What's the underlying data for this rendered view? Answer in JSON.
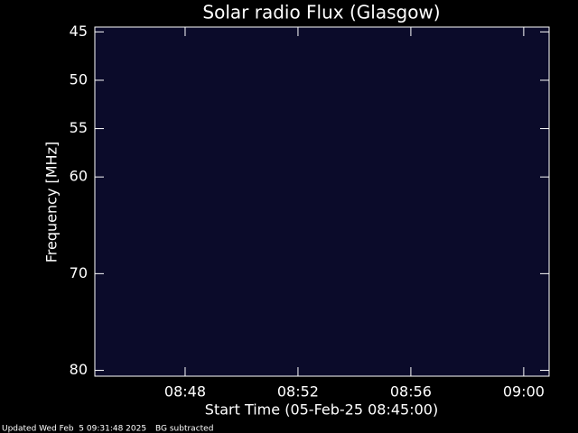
{
  "chart_data": {
    "type": "spectrogram",
    "title": "Solar radio Flux (Glasgow)",
    "x_label": "Start Time (05-Feb-25 08:45:00)",
    "y_label": "Frequency [MHz]",
    "xlim": [
      44.8,
      60.9
    ],
    "xticks": [
      {
        "value": 48,
        "label": "08:48"
      },
      {
        "value": 52,
        "label": "08:52"
      },
      {
        "value": 56,
        "label": "08:56"
      },
      {
        "value": 60,
        "label": "09:00"
      }
    ],
    "ylim": [
      80.6,
      44.5
    ],
    "yticks": [
      45,
      50,
      55,
      60,
      70,
      80
    ],
    "footer": {
      "updated": "Updated Wed Feb  5 09:31:48 2025",
      "note": "BG subtracted"
    }
  }
}
